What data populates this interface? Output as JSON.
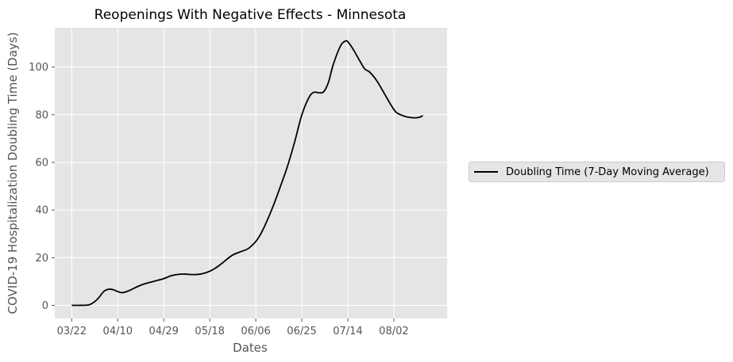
{
  "chart_data": {
    "type": "line",
    "title": "Reopenings With Negative Effects - Minnesota",
    "xlabel": "Dates",
    "ylabel": "COVID-19 Hospitalization Doubling Time (Days)",
    "x_tick_labels": [
      "03/22",
      "04/10",
      "04/29",
      "05/18",
      "06/06",
      "06/25",
      "07/14",
      "08/02"
    ],
    "y_ticks": [
      0,
      20,
      40,
      60,
      80,
      100
    ],
    "ylim": [
      -5.5,
      116.5
    ],
    "xlim": [
      "2020-03-15",
      "2020-08-24"
    ],
    "grid": true,
    "legend_position": "right",
    "series": [
      {
        "name": "Doubling Time (7-Day Moving Average)",
        "color": "#000000",
        "points": [
          [
            "2020-03-22",
            0
          ],
          [
            "2020-03-26",
            0
          ],
          [
            "2020-03-29",
            0.2
          ],
          [
            "2020-03-31",
            1.2
          ],
          [
            "2020-04-02",
            3
          ],
          [
            "2020-04-04",
            5.6
          ],
          [
            "2020-04-06",
            6.7
          ],
          [
            "2020-04-08",
            6.6
          ],
          [
            "2020-04-10",
            5.8
          ],
          [
            "2020-04-12",
            5.3
          ],
          [
            "2020-04-15",
            6.3
          ],
          [
            "2020-04-18",
            7.8
          ],
          [
            "2020-04-21",
            9.0
          ],
          [
            "2020-04-25",
            10.1
          ],
          [
            "2020-04-29",
            11.2
          ],
          [
            "2020-05-02",
            12.4
          ],
          [
            "2020-05-05",
            13.0
          ],
          [
            "2020-05-08",
            13.1
          ],
          [
            "2020-05-11",
            12.9
          ],
          [
            "2020-05-14",
            13.1
          ],
          [
            "2020-05-17",
            13.9
          ],
          [
            "2020-05-20",
            15.4
          ],
          [
            "2020-05-23",
            17.6
          ],
          [
            "2020-05-26",
            20.1
          ],
          [
            "2020-05-28",
            21.4
          ],
          [
            "2020-05-31",
            22.6
          ],
          [
            "2020-06-03",
            23.9
          ],
          [
            "2020-06-06",
            26.8
          ],
          [
            "2020-06-08",
            29.9
          ],
          [
            "2020-06-10",
            34.0
          ],
          [
            "2020-06-13",
            41.2
          ],
          [
            "2020-06-16",
            49.4
          ],
          [
            "2020-06-19",
            58.1
          ],
          [
            "2020-06-22",
            68.4
          ],
          [
            "2020-06-25",
            79.9
          ],
          [
            "2020-06-28",
            87.3
          ],
          [
            "2020-06-30",
            89.4
          ],
          [
            "2020-07-02",
            89.2
          ],
          [
            "2020-07-04",
            89.6
          ],
          [
            "2020-07-06",
            93.6
          ],
          [
            "2020-07-08",
            101.1
          ],
          [
            "2020-07-11",
            108.9
          ],
          [
            "2020-07-13",
            110.9
          ],
          [
            "2020-07-14",
            110.6
          ],
          [
            "2020-07-16",
            107.8
          ],
          [
            "2020-07-19",
            102.5
          ],
          [
            "2020-07-21",
            99.2
          ],
          [
            "2020-07-23",
            97.9
          ],
          [
            "2020-07-26",
            94.2
          ],
          [
            "2020-07-29",
            89.0
          ],
          [
            "2020-08-01",
            83.8
          ],
          [
            "2020-08-03",
            81.0
          ],
          [
            "2020-08-06",
            79.5
          ],
          [
            "2020-08-09",
            78.8
          ],
          [
            "2020-08-12",
            78.8
          ],
          [
            "2020-08-14",
            79.6
          ]
        ]
      }
    ]
  }
}
